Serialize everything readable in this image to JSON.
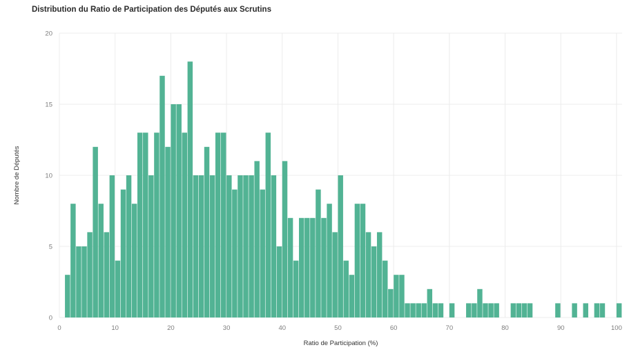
{
  "chart_data": {
    "type": "bar",
    "title": "Distribution du Ratio de Participation des Députés aux Scrutins",
    "xlabel": "Ratio de Participation (%)",
    "ylabel": "Nombre de Députés",
    "xlim": [
      0,
      101
    ],
    "ylim": [
      0,
      20
    ],
    "xticks": [
      0,
      10,
      20,
      30,
      40,
      50,
      60,
      70,
      80,
      90,
      100
    ],
    "yticks": [
      0,
      5,
      10,
      15,
      20
    ],
    "grid": true,
    "bar_color": "#52b394",
    "bin_width": 1,
    "x": [
      1,
      2,
      3,
      4,
      5,
      6,
      7,
      8,
      9,
      10,
      11,
      12,
      13,
      14,
      15,
      16,
      17,
      18,
      19,
      20,
      21,
      22,
      23,
      24,
      25,
      26,
      27,
      28,
      29,
      30,
      31,
      32,
      33,
      34,
      35,
      36,
      37,
      38,
      39,
      40,
      41,
      42,
      43,
      44,
      45,
      46,
      47,
      48,
      49,
      50,
      51,
      52,
      53,
      54,
      55,
      56,
      57,
      58,
      59,
      60,
      61,
      62,
      63,
      64,
      65,
      66,
      67,
      68,
      69,
      70,
      71,
      72,
      73,
      74,
      75,
      76,
      77,
      78,
      79,
      80,
      81,
      82,
      83,
      84,
      85,
      86,
      87,
      88,
      89,
      90,
      91,
      92,
      93,
      94,
      95,
      96,
      97,
      98,
      99,
      100
    ],
    "values": [
      3,
      8,
      5,
      5,
      6,
      12,
      8,
      6,
      10,
      4,
      9,
      10,
      8,
      13,
      13,
      10,
      13,
      17,
      12,
      15,
      15,
      13,
      18,
      10,
      10,
      12,
      10,
      13,
      13,
      10,
      9,
      10,
      10,
      10,
      11,
      9,
      13,
      10,
      5,
      11,
      7,
      4,
      7,
      7,
      7,
      9,
      7,
      8,
      6,
      10,
      4,
      3,
      8,
      8,
      6,
      5,
      6,
      4,
      2,
      3,
      3,
      1,
      1,
      1,
      1,
      2,
      1,
      1,
      0,
      1,
      0,
      0,
      1,
      1,
      2,
      1,
      1,
      1,
      0,
      0,
      1,
      1,
      1,
      1,
      0,
      0,
      0,
      0,
      1,
      0,
      0,
      1,
      0,
      1,
      0,
      1,
      1,
      0,
      0,
      1
    ]
  }
}
